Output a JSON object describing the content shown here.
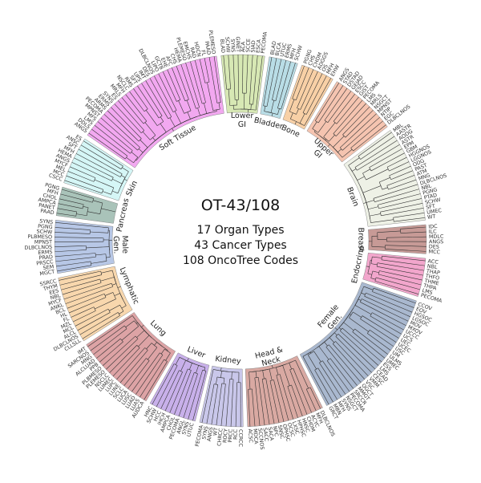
{
  "center": {
    "title": "OT-43/108",
    "lines": [
      "17 Organ Types",
      "43 Cancer Types",
      "108 OncoTree Codes"
    ]
  },
  "sectors": [
    {
      "name": "Lower GI",
      "label_lines": [
        "Lower",
        "GI"
      ],
      "color": "#d7e8b4",
      "leaves": [
        "BLAD",
        "SCHW",
        "SYNS",
        "GINET",
        "ACA",
        "SCCE",
        "SIAD",
        "ESCA",
        "PECOMA"
      ]
    },
    {
      "name": "Bladder",
      "label_lines": [
        "Bladder"
      ],
      "color": "#b9dde6",
      "leaves": [
        "BLAD",
        "BLCA",
        "UTUC",
        "ERMS",
        "MFH",
        "SCHW"
      ]
    },
    {
      "name": "Bone",
      "label_lines": [
        "Bone"
      ],
      "color": "#f8d0a6",
      "leaves": [
        "PGNG",
        "CHS",
        "CHDM",
        "ADGGS",
        "OS",
        "MFH",
        "EHW"
      ]
    },
    {
      "name": "Upper GI",
      "label_lines": [
        "Upper",
        "GI"
      ],
      "color": "#f5c4b0",
      "leaves": [
        "ANGS",
        "STAD",
        "DSTAD",
        "GEJAD",
        "ESCC",
        "GIST",
        "PECOMA",
        "LMS",
        "MRLS",
        "NSGCT",
        "MPNST",
        "NTIP",
        "EGC",
        "DLBCLNOS"
      ]
    },
    {
      "name": "Brain",
      "label_lines": [
        "Brain"
      ],
      "color": "#eef1e6",
      "leaves": [
        "MBL",
        "AASTR",
        "AODG",
        "ASTR",
        "EPM",
        "GBM",
        "HGGNOS",
        "LGGNOS",
        "ODG",
        "PAST",
        "ATM",
        "MNG",
        "DLBCLNOS",
        "NBL",
        "PGNG",
        "PTAD",
        "SCHW",
        "SFT",
        "UMEC",
        "WT"
      ]
    },
    {
      "name": "Breast",
      "label_lines": [
        "Breast"
      ],
      "color": "#c79a96",
      "leaves": [
        "IDC",
        "ILC",
        "MDLC",
        "ANGS",
        "DES",
        "MCC"
      ]
    },
    {
      "name": "Endocrine",
      "label_lines": [
        "Endocrine"
      ],
      "color": "#f2a6cc",
      "leaves": [
        "ACC",
        "NBL",
        "THAP",
        "THFO",
        "THME",
        "THPA",
        "LMS",
        "PECOMA"
      ]
    },
    {
      "name": "Female Gen.",
      "label_lines": [
        "Female",
        "Gen."
      ],
      "color": "#a9b8cf",
      "leaves": [
        "CCOV",
        "EOV",
        "HGSOC",
        "LGSOC",
        "MOV",
        "MXOV",
        "UCCC",
        "UCS",
        "UEC",
        "UCEC",
        "USC",
        "UM",
        "ULMS",
        "UMEC",
        "ESS",
        "LMS",
        "CEAD",
        "CESC",
        "VMM",
        "VSC",
        "OGCT",
        "MMGT",
        "SRCCR",
        "PECOMA",
        "NSGCT",
        "SYNS",
        "MFH",
        "MBN",
        "GRCT"
      ]
    },
    {
      "name": "Head & Neck",
      "label_lines": [
        "Head &",
        "Neck"
      ],
      "color": "#d9a9a2",
      "leaves": [
        "DLBCLNOS",
        "MFH",
        "ACYC",
        "CHDM",
        "HNSC",
        "HPHSC",
        "LXSC",
        "OCSC",
        "OPHSC",
        "SNSC",
        "NPC",
        "SACA",
        "SACC",
        "SCCNOS",
        "MDCA",
        "ACSC"
      ]
    },
    {
      "name": "Kidney",
      "label_lines": [
        "Kidney"
      ],
      "color": "#c9c7ea",
      "leaves": [
        "CCRCC",
        "RCC",
        "PRCC",
        "ROCY",
        "CHRCC",
        "WT",
        "ANGS",
        "SYNS",
        "PECOMA"
      ]
    },
    {
      "name": "Liver",
      "label_lines": [
        "Liver"
      ],
      "color": "#c8b0ea",
      "leaves": [
        "UTUC",
        "SYNS",
        "ANGL",
        "PECOMA",
        "CHOL",
        "AMPCA",
        "IHCH",
        "HCC",
        "SCHW",
        "HNC"
      ]
    },
    {
      "name": "Lung",
      "label_lines": [
        "Lung"
      ],
      "color": "#dda3a5",
      "leaves": [
        "AUDCA",
        "LUAS",
        "LUAD",
        "LUSC",
        "LUCA",
        "SCLC",
        "LUNE",
        "LUPC",
        "LUMEC",
        "NSCLC",
        "PLEMESO",
        "PLBMESO",
        "PPB",
        "ALCLUAD",
        "MNG",
        "SARCNOS",
        "IMT"
      ]
    },
    {
      "name": "Lymphatic",
      "label_lines": [
        "Lymphatic"
      ],
      "color": "#f8d7ad",
      "leaves": [
        "CLLSLL",
        "DLBCLNOS",
        "ALCL",
        "MCL",
        "MZL",
        "FL",
        "HL",
        "BCL",
        "ANKL",
        "MYCF",
        "NBL",
        "EES",
        "THYM",
        "SSRCC"
      ]
    },
    {
      "name": "Male Gen.",
      "label_lines": [
        "Male",
        "Gen."
      ],
      "color": "#b7c7e6",
      "leaves": [
        "MGCT",
        "SEM",
        "PRSCC",
        "PRAD",
        "ERMS",
        "DLBCLNOS",
        "MPNST",
        "PLBMESO",
        "SCHW",
        "PGNG",
        "SYNS"
      ]
    },
    {
      "name": "Pancreas",
      "label_lines": [
        "Pancreas"
      ],
      "color": "#a9c3b9",
      "leaves": [
        "PAAD",
        "PANET",
        "AMPCA",
        "CHOL",
        "MFH",
        "PGNG"
      ]
    },
    {
      "name": "Skin",
      "label_lines": [
        "Skin"
      ],
      "color": "#d5f6f6",
      "leaves": [
        "CSCC",
        "MCC",
        "MEL",
        "MYCF",
        "ANGS",
        "HEMA",
        "MFH",
        "SFT",
        "ANSC",
        "ES"
      ]
    },
    {
      "name": "Soft Tissue",
      "label_lines": [
        "Soft Tissue"
      ],
      "color": "#f2a8f0",
      "leaves": [
        "ANGS",
        "DDLS",
        "LMS",
        "MFS",
        "MPNST",
        "PECOMA",
        "ARMS",
        "ERMS",
        "SYNS",
        "ES",
        "MRLS",
        "MFH",
        "NSCLC",
        "RMS",
        "SFT",
        "UPS",
        "IMT",
        "DES",
        "DLBCLNOS",
        "LIPO",
        "GCTB",
        "EHE",
        "AFC",
        "CHS",
        "HEMA",
        "PLEMESO",
        "EMCHS",
        "RAD",
        "HDCN",
        "FL",
        "PAAD",
        "PLEMESO"
      ]
    }
  ]
}
